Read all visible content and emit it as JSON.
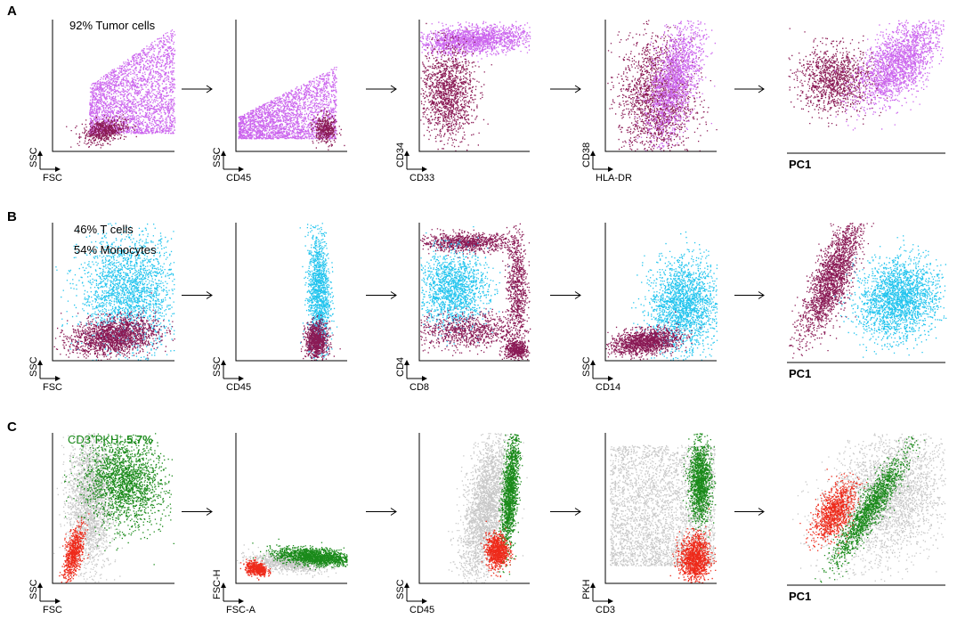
{
  "chart_data": [
    {
      "panel": "A",
      "type": "scatter",
      "annotation": "92% Tumor cells",
      "palette": {
        "tumor": "#cc66ee",
        "normal": "#8a1a55"
      },
      "plots": [
        {
          "xlabel": "FSC",
          "ylabel": "SSC",
          "populations": [
            {
              "color": "tumor",
              "points": 2600,
              "shape": "rect",
              "x": [
                0.3,
                1.0
              ],
              "y": [
                0.14,
                0.95
              ],
              "skew": 0.55
            },
            {
              "color": "normal",
              "points": 600,
              "shape": "ellipse",
              "cx": 0.42,
              "cy": 0.16,
              "rx": 0.16,
              "ry": 0.08,
              "tilt": 0.2
            }
          ]
        },
        {
          "xlabel": "CD45",
          "ylabel": "SSC",
          "populations": [
            {
              "color": "tumor",
              "points": 2400,
              "shape": "rect",
              "x": [
                0.02,
                0.9
              ],
              "y": [
                0.1,
                0.65
              ],
              "skew": 0.7
            },
            {
              "color": "normal",
              "points": 400,
              "shape": "ellipse",
              "cx": 0.8,
              "cy": 0.17,
              "rx": 0.09,
              "ry": 0.1,
              "tilt": 0.3
            }
          ]
        },
        {
          "xlabel": "CD33",
          "ylabel": "CD34",
          "populations": [
            {
              "color": "tumor",
              "points": 1800,
              "shape": "ellipse",
              "cx": 0.5,
              "cy": 0.85,
              "rx": 0.47,
              "ry": 0.09,
              "tilt": 0.05
            },
            {
              "color": "normal",
              "points": 1400,
              "shape": "ellipse",
              "cx": 0.25,
              "cy": 0.45,
              "rx": 0.22,
              "ry": 0.32,
              "tilt": 0
            }
          ]
        },
        {
          "xlabel": "HLA-DR",
          "ylabel": "CD38",
          "populations": [
            {
              "color": "normal",
              "points": 1800,
              "shape": "ellipse",
              "cx": 0.45,
              "cy": 0.4,
              "rx": 0.3,
              "ry": 0.42,
              "tilt": 0
            },
            {
              "color": "tumor",
              "points": 1600,
              "shape": "ellipse",
              "cx": 0.62,
              "cy": 0.55,
              "rx": 0.18,
              "ry": 0.4,
              "tilt": -0.35
            }
          ]
        },
        {
          "xlabel": "PC1",
          "ylabel": "",
          "populations": [
            {
              "color": "normal",
              "points": 1200,
              "shape": "ellipse",
              "cx": 0.3,
              "cy": 0.55,
              "rx": 0.22,
              "ry": 0.22,
              "tilt": 0
            },
            {
              "color": "tumor",
              "points": 2000,
              "shape": "ellipse",
              "cx": 0.7,
              "cy": 0.68,
              "rx": 0.16,
              "ry": 0.34,
              "tilt": -0.6
            }
          ]
        }
      ]
    },
    {
      "panel": "B",
      "type": "scatter",
      "annotation": [
        "46% T cells",
        "54% Monocytes"
      ],
      "palette": {
        "t_cells": "#8a1a55",
        "monocytes": "#22c4ee"
      },
      "plots": [
        {
          "xlabel": "FSC",
          "ylabel": "SSC",
          "populations": [
            {
              "color": "monocytes",
              "points": 2200,
              "shape": "ellipse",
              "cx": 0.62,
              "cy": 0.5,
              "rx": 0.36,
              "ry": 0.38,
              "tilt": 0
            },
            {
              "color": "t_cells",
              "points": 1800,
              "shape": "ellipse",
              "cx": 0.5,
              "cy": 0.18,
              "rx": 0.32,
              "ry": 0.12,
              "tilt": 0.1
            }
          ]
        },
        {
          "xlabel": "CD45",
          "ylabel": "SSC",
          "populations": [
            {
              "color": "monocytes",
              "points": 1400,
              "shape": "ellipse",
              "cx": 0.74,
              "cy": 0.48,
              "rx": 0.09,
              "ry": 0.42,
              "tilt": 0
            },
            {
              "color": "t_cells",
              "points": 900,
              "shape": "ellipse",
              "cx": 0.72,
              "cy": 0.15,
              "rx": 0.09,
              "ry": 0.12,
              "tilt": 0
            }
          ]
        },
        {
          "xlabel": "CD8",
          "ylabel": "CD4",
          "populations": [
            {
              "color": "t_cells",
              "points": 900,
              "shape": "ellipse",
              "cx": 0.42,
              "cy": 0.86,
              "rx": 0.38,
              "ry": 0.06,
              "tilt": 0
            },
            {
              "color": "monocytes",
              "points": 1500,
              "shape": "ellipse",
              "cx": 0.3,
              "cy": 0.52,
              "rx": 0.28,
              "ry": 0.25,
              "tilt": 0
            },
            {
              "color": "t_cells",
              "points": 900,
              "shape": "ellipse",
              "cx": 0.45,
              "cy": 0.22,
              "rx": 0.45,
              "ry": 0.12,
              "tilt": 0
            },
            {
              "color": "t_cells",
              "points": 700,
              "shape": "ellipse",
              "cx": 0.88,
              "cy": 0.55,
              "rx": 0.08,
              "ry": 0.36,
              "tilt": 0
            },
            {
              "color": "t_cells",
              "points": 500,
              "shape": "ellipse",
              "cx": 0.88,
              "cy": 0.08,
              "rx": 0.1,
              "ry": 0.06,
              "tilt": 0
            }
          ]
        },
        {
          "xlabel": "CD14",
          "ylabel": "SSC",
          "populations": [
            {
              "color": "monocytes",
              "points": 2000,
              "shape": "ellipse",
              "cx": 0.7,
              "cy": 0.4,
              "rx": 0.28,
              "ry": 0.3,
              "tilt": -0.4
            },
            {
              "color": "t_cells",
              "points": 1400,
              "shape": "ellipse",
              "cx": 0.35,
              "cy": 0.14,
              "rx": 0.28,
              "ry": 0.08,
              "tilt": 0.1
            }
          ]
        },
        {
          "xlabel": "PC1",
          "ylabel": "",
          "populations": [
            {
              "color": "t_cells",
              "points": 2000,
              "shape": "ellipse",
              "cx": 0.28,
              "cy": 0.6,
              "rx": 0.1,
              "ry": 0.42,
              "tilt": -0.35
            },
            {
              "color": "monocytes",
              "points": 2200,
              "shape": "ellipse",
              "cx": 0.7,
              "cy": 0.45,
              "rx": 0.22,
              "ry": 0.26,
              "tilt": -0.4
            }
          ]
        }
      ]
    },
    {
      "panel": "C",
      "type": "scatter",
      "annotation": {
        "prefix": "CD3",
        "sup1": "+",
        "mid": "PKH",
        "sup2": "+",
        "value": "5.7%"
      },
      "palette": {
        "cd3_pkh": "#1a8a1a",
        "red_population": "#ee2a1a",
        "others": "#c8c8c8"
      },
      "plots": [
        {
          "xlabel": "FSC",
          "ylabel": "SSC",
          "populations": [
            {
              "color": "others",
              "points": 2200,
              "shape": "ellipse",
              "cx": 0.3,
              "cy": 0.55,
              "rx": 0.16,
              "ry": 0.42,
              "tilt": 0
            },
            {
              "color": "cd3_pkh",
              "points": 2000,
              "shape": "ellipse",
              "cx": 0.58,
              "cy": 0.68,
              "rx": 0.3,
              "ry": 0.26,
              "tilt": -0.35
            },
            {
              "color": "red_population",
              "points": 700,
              "shape": "ellipse",
              "cx": 0.17,
              "cy": 0.2,
              "rx": 0.06,
              "ry": 0.16,
              "tilt": -0.3
            }
          ]
        },
        {
          "xlabel": "FSC-A",
          "ylabel": "FSC-H",
          "populations": [
            {
              "color": "others",
              "points": 900,
              "shape": "ellipse",
              "cx": 0.45,
              "cy": 0.14,
              "rx": 0.3,
              "ry": 0.05,
              "tilt": -0.08
            },
            {
              "color": "cd3_pkh",
              "points": 1600,
              "shape": "ellipse",
              "cx": 0.7,
              "cy": 0.18,
              "rx": 0.3,
              "ry": 0.05,
              "tilt": -0.06
            },
            {
              "color": "red_population",
              "points": 500,
              "shape": "ellipse",
              "cx": 0.18,
              "cy": 0.1,
              "rx": 0.09,
              "ry": 0.04,
              "tilt": -0.15
            }
          ]
        },
        {
          "xlabel": "CD45",
          "ylabel": "SSC",
          "populations": [
            {
              "color": "others",
              "points": 2600,
              "shape": "ellipse",
              "cx": 0.6,
              "cy": 0.5,
              "rx": 0.17,
              "ry": 0.44,
              "tilt": -0.25
            },
            {
              "color": "cd3_pkh",
              "points": 1500,
              "shape": "ellipse",
              "cx": 0.82,
              "cy": 0.62,
              "rx": 0.06,
              "ry": 0.36,
              "tilt": -0.1
            },
            {
              "color": "red_population",
              "points": 900,
              "shape": "ellipse",
              "cx": 0.7,
              "cy": 0.22,
              "rx": 0.09,
              "ry": 0.1,
              "tilt": 0
            }
          ]
        },
        {
          "xlabel": "CD3",
          "ylabel": "PKH",
          "populations": [
            {
              "color": "others",
              "points": 3200,
              "shape": "rect",
              "x": [
                0.04,
                0.98
              ],
              "y": [
                0.12,
                0.92
              ],
              "skew": 0
            },
            {
              "color": "cd3_pkh",
              "points": 1400,
              "shape": "ellipse",
              "cx": 0.85,
              "cy": 0.68,
              "rx": 0.09,
              "ry": 0.24,
              "tilt": 0
            },
            {
              "color": "red_population",
              "points": 1200,
              "shape": "ellipse",
              "cx": 0.8,
              "cy": 0.17,
              "rx": 0.12,
              "ry": 0.14,
              "tilt": 0
            }
          ]
        },
        {
          "xlabel": "PC1",
          "ylabel": "",
          "populations": [
            {
              "color": "others",
              "points": 3000,
              "shape": "ellipse",
              "cx": 0.62,
              "cy": 0.58,
              "rx": 0.3,
              "ry": 0.42,
              "tilt": -0.6
            },
            {
              "color": "cd3_pkh",
              "points": 1500,
              "shape": "ellipse",
              "cx": 0.52,
              "cy": 0.5,
              "rx": 0.07,
              "ry": 0.38,
              "tilt": -0.55
            },
            {
              "color": "red_population",
              "points": 1000,
              "shape": "ellipse",
              "cx": 0.3,
              "cy": 0.48,
              "rx": 0.09,
              "ry": 0.2,
              "tilt": -0.45
            }
          ]
        }
      ]
    }
  ]
}
